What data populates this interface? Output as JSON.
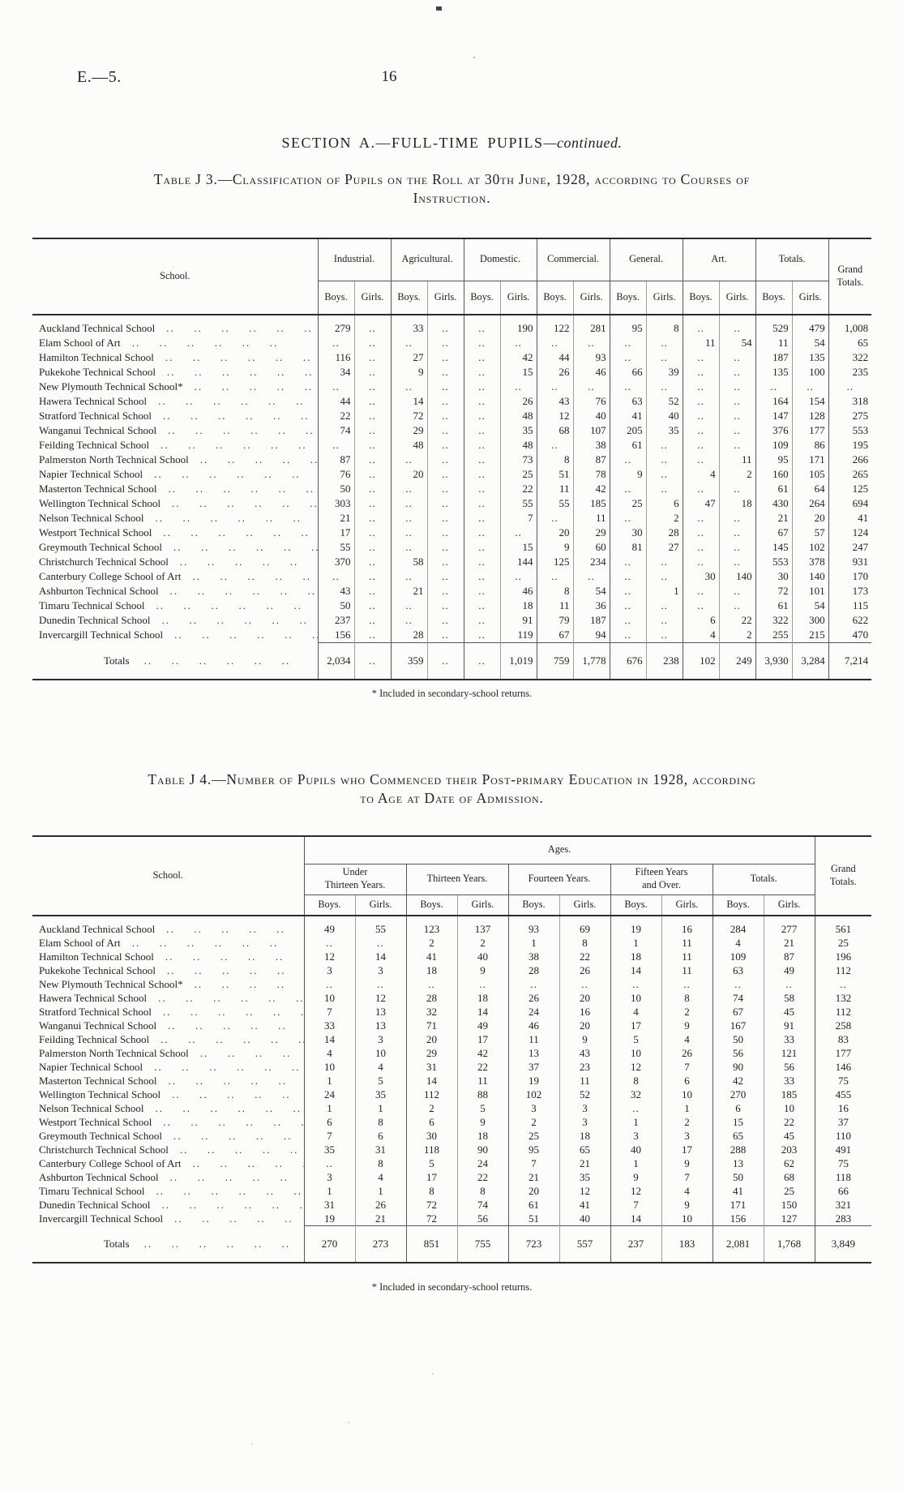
{
  "page": {
    "doc_ref": "E.—5.",
    "page_number": "16",
    "section_heading_main": "SECTION A.—FULL-TIME PUPILS",
    "section_heading_cont": "—continued.",
    "footnote": "* Included in secondary-school returns."
  },
  "shared": {
    "boys": "Boys.",
    "girls": "Girls."
  },
  "table_j3": {
    "caption_line1": "Table J 3.—Classification of Pupils on the Roll at 30th June, 1928, according to Courses of",
    "caption_line2": "Instruction.",
    "col_school": "School.",
    "groups": [
      "Industrial.",
      "Agricultural.",
      "Domestic.",
      "Commercial.",
      "General.",
      "Art.",
      "Totals."
    ],
    "col_grand": "Grand Totals.",
    "rows": [
      {
        "school": "Auckland Technical School",
        "values": [
          "279",
          "..",
          "33",
          "..",
          "..",
          "190",
          "122",
          "281",
          "95",
          "8",
          "..",
          "..",
          "529",
          "479",
          "1,008"
        ]
      },
      {
        "school": "Elam School of Art",
        "values": [
          "..",
          "..",
          "..",
          "..",
          "..",
          "..",
          "..",
          "..",
          "..",
          "..",
          "11",
          "54",
          "11",
          "54",
          "65"
        ]
      },
      {
        "school": "Hamilton Technical School",
        "values": [
          "116",
          "..",
          "27",
          "..",
          "..",
          "42",
          "44",
          "93",
          "..",
          "..",
          "..",
          "..",
          "187",
          "135",
          "322"
        ]
      },
      {
        "school": "Pukekohe Technical School",
        "values": [
          "34",
          "..",
          "9",
          "..",
          "..",
          "15",
          "26",
          "46",
          "66",
          "39",
          "..",
          "..",
          "135",
          "100",
          "235"
        ]
      },
      {
        "school": "New Plymouth Technical School*",
        "values": [
          "..",
          "..",
          "..",
          "..",
          "..",
          "..",
          "..",
          "..",
          "..",
          "..",
          "..",
          "..",
          "..",
          "..",
          ".."
        ]
      },
      {
        "school": "Hawera Technical School",
        "values": [
          "44",
          "..",
          "14",
          "..",
          "..",
          "26",
          "43",
          "76",
          "63",
          "52",
          "..",
          "..",
          "164",
          "154",
          "318"
        ]
      },
      {
        "school": "Stratford Technical School",
        "values": [
          "22",
          "..",
          "72",
          "..",
          "..",
          "48",
          "12",
          "40",
          "41",
          "40",
          "..",
          "..",
          "147",
          "128",
          "275"
        ]
      },
      {
        "school": "Wanganui Technical School",
        "values": [
          "74",
          "..",
          "29",
          "..",
          "..",
          "35",
          "68",
          "107",
          "205",
          "35",
          "..",
          "..",
          "376",
          "177",
          "553"
        ]
      },
      {
        "school": "Feilding Technical School",
        "values": [
          "..",
          "..",
          "48",
          "..",
          "..",
          "48",
          "..",
          "38",
          "61",
          "..",
          "..",
          "..",
          "109",
          "86",
          "195"
        ]
      },
      {
        "school": "Palmerston North Technical School",
        "values": [
          "87",
          "..",
          "..",
          "..",
          "..",
          "73",
          "8",
          "87",
          "..",
          "..",
          "..",
          "11",
          "95",
          "171",
          "266"
        ]
      },
      {
        "school": "Napier Technical School",
        "values": [
          "76",
          "..",
          "20",
          "..",
          "..",
          "25",
          "51",
          "78",
          "9",
          "..",
          "4",
          "2",
          "160",
          "105",
          "265"
        ]
      },
      {
        "school": "Masterton Technical School",
        "values": [
          "50",
          "..",
          "..",
          "..",
          "..",
          "22",
          "11",
          "42",
          "..",
          "..",
          "..",
          "..",
          "61",
          "64",
          "125"
        ]
      },
      {
        "school": "Wellington Technical School",
        "values": [
          "303",
          "..",
          "..",
          "..",
          "..",
          "55",
          "55",
          "185",
          "25",
          "6",
          "47",
          "18",
          "430",
          "264",
          "694"
        ]
      },
      {
        "school": "Nelson Technical School",
        "values": [
          "21",
          "..",
          "..",
          "..",
          "..",
          "7",
          "..",
          "11",
          "..",
          "2",
          "..",
          "..",
          "21",
          "20",
          "41"
        ]
      },
      {
        "school": "Westport Technical School",
        "values": [
          "17",
          "..",
          "..",
          "..",
          "..",
          "..",
          "20",
          "29",
          "30",
          "28",
          "..",
          "..",
          "67",
          "57",
          "124"
        ]
      },
      {
        "school": "Greymouth Technical School",
        "values": [
          "55",
          "..",
          "..",
          "..",
          "..",
          "15",
          "9",
          "60",
          "81",
          "27",
          "..",
          "..",
          "145",
          "102",
          "247"
        ]
      },
      {
        "school": "Christchurch Technical School",
        "values": [
          "370",
          "..",
          "58",
          "..",
          "..",
          "144",
          "125",
          "234",
          "..",
          "..",
          "..",
          "..",
          "553",
          "378",
          "931"
        ]
      },
      {
        "school": "Canterbury College School of Art",
        "values": [
          "..",
          "..",
          "..",
          "..",
          "..",
          "..",
          "..",
          "..",
          "..",
          "..",
          "30",
          "140",
          "30",
          "140",
          "170"
        ]
      },
      {
        "school": "Ashburton Technical School",
        "values": [
          "43",
          "..",
          "21",
          "..",
          "..",
          "46",
          "8",
          "54",
          "..",
          "1",
          "..",
          "..",
          "72",
          "101",
          "173"
        ]
      },
      {
        "school": "Timaru Technical School",
        "values": [
          "50",
          "..",
          "..",
          "..",
          "..",
          "18",
          "11",
          "36",
          "..",
          "..",
          "..",
          "..",
          "61",
          "54",
          "115"
        ]
      },
      {
        "school": "Dunedin Technical School",
        "values": [
          "237",
          "..",
          "..",
          "..",
          "..",
          "91",
          "79",
          "187",
          "..",
          "..",
          "6",
          "22",
          "322",
          "300",
          "622"
        ]
      },
      {
        "school": "Invercargill Technical School",
        "values": [
          "156",
          "..",
          "28",
          "..",
          "..",
          "119",
          "67",
          "94",
          "..",
          "..",
          "4",
          "2",
          "255",
          "215",
          "470"
        ]
      }
    ],
    "totals_label": "Totals",
    "totals": [
      "2,034",
      "..",
      "359",
      "..",
      "..",
      "1,019",
      "759",
      "1,778",
      "676",
      "238",
      "102",
      "249",
      "3,930",
      "3,284",
      "7,214"
    ]
  },
  "table_j4": {
    "caption_line1": "Table J 4.—Number of Pupils who Commenced their Post-primary Education in 1928, according",
    "caption_line2": "to Age at Date of Admission.",
    "ages_header": "Ages.",
    "col_school": "School.",
    "groups": [
      "Under\nThirteen Years.",
      "Thirteen Years.",
      "Fourteen Years.",
      "Fifteen Years\nand Over.",
      "Totals."
    ],
    "col_grand": "Grand Totals.",
    "rows": [
      {
        "school": "Auckland Technical School",
        "values": [
          "49",
          "55",
          "123",
          "137",
          "93",
          "69",
          "19",
          "16",
          "284",
          "277",
          "561"
        ]
      },
      {
        "school": "Elam School of Art",
        "values": [
          "..",
          "..",
          "2",
          "2",
          "1",
          "8",
          "1",
          "11",
          "4",
          "21",
          "25"
        ]
      },
      {
        "school": "Hamilton Technical School",
        "values": [
          "12",
          "14",
          "41",
          "40",
          "38",
          "22",
          "18",
          "11",
          "109",
          "87",
          "196"
        ]
      },
      {
        "school": "Pukekohe Technical School",
        "values": [
          "3",
          "3",
          "18",
          "9",
          "28",
          "26",
          "14",
          "11",
          "63",
          "49",
          "112"
        ]
      },
      {
        "school": "New Plymouth Technical School*",
        "values": [
          "..",
          "..",
          "..",
          "..",
          "..",
          "..",
          "..",
          "..",
          "..",
          "..",
          ".."
        ]
      },
      {
        "school": "Hawera Technical School",
        "values": [
          "10",
          "12",
          "28",
          "18",
          "26",
          "20",
          "10",
          "8",
          "74",
          "58",
          "132"
        ]
      },
      {
        "school": "Stratford Technical School",
        "values": [
          "7",
          "13",
          "32",
          "14",
          "24",
          "16",
          "4",
          "2",
          "67",
          "45",
          "112"
        ]
      },
      {
        "school": "Wanganui Technical School",
        "values": [
          "33",
          "13",
          "71",
          "49",
          "46",
          "20",
          "17",
          "9",
          "167",
          "91",
          "258"
        ]
      },
      {
        "school": "Feilding Technical School",
        "values": [
          "14",
          "3",
          "20",
          "17",
          "11",
          "9",
          "5",
          "4",
          "50",
          "33",
          "83"
        ]
      },
      {
        "school": "Palmerston North Technical School",
        "values": [
          "4",
          "10",
          "29",
          "42",
          "13",
          "43",
          "10",
          "26",
          "56",
          "121",
          "177"
        ]
      },
      {
        "school": "Napier Technical School",
        "values": [
          "10",
          "4",
          "31",
          "22",
          "37",
          "23",
          "12",
          "7",
          "90",
          "56",
          "146"
        ]
      },
      {
        "school": "Masterton Technical School",
        "values": [
          "1",
          "5",
          "14",
          "11",
          "19",
          "11",
          "8",
          "6",
          "42",
          "33",
          "75"
        ]
      },
      {
        "school": "Wellington Technical School",
        "values": [
          "24",
          "35",
          "112",
          "88",
          "102",
          "52",
          "32",
          "10",
          "270",
          "185",
          "455"
        ]
      },
      {
        "school": "Nelson Technical School",
        "values": [
          "1",
          "1",
          "2",
          "5",
          "3",
          "3",
          "..",
          "1",
          "6",
          "10",
          "16"
        ]
      },
      {
        "school": "Westport Technical School",
        "values": [
          "6",
          "8",
          "6",
          "9",
          "2",
          "3",
          "1",
          "2",
          "15",
          "22",
          "37"
        ]
      },
      {
        "school": "Greymouth Technical School",
        "values": [
          "7",
          "6",
          "30",
          "18",
          "25",
          "18",
          "3",
          "3",
          "65",
          "45",
          "110"
        ]
      },
      {
        "school": "Christchurch Technical School",
        "values": [
          "35",
          "31",
          "118",
          "90",
          "95",
          "65",
          "40",
          "17",
          "288",
          "203",
          "491"
        ]
      },
      {
        "school": "Canterbury College School of Art",
        "values": [
          "..",
          "8",
          "5",
          "24",
          "7",
          "21",
          "1",
          "9",
          "13",
          "62",
          "75"
        ]
      },
      {
        "school": "Ashburton Technical School",
        "values": [
          "3",
          "4",
          "17",
          "22",
          "21",
          "35",
          "9",
          "7",
          "50",
          "68",
          "118"
        ]
      },
      {
        "school": "Timaru Technical School",
        "values": [
          "1",
          "1",
          "8",
          "8",
          "20",
          "12",
          "12",
          "4",
          "41",
          "25",
          "66"
        ]
      },
      {
        "school": "Dunedin Technical School",
        "values": [
          "31",
          "26",
          "72",
          "74",
          "61",
          "41",
          "7",
          "9",
          "171",
          "150",
          "321"
        ]
      },
      {
        "school": "Invercargill Technical School",
        "values": [
          "19",
          "21",
          "72",
          "56",
          "51",
          "40",
          "14",
          "10",
          "156",
          "127",
          "283"
        ]
      }
    ],
    "totals_label": "Totals",
    "totals": [
      "270",
      "273",
      "851",
      "755",
      "723",
      "557",
      "237",
      "183",
      "2,081",
      "1,768",
      "3,849"
    ]
  }
}
